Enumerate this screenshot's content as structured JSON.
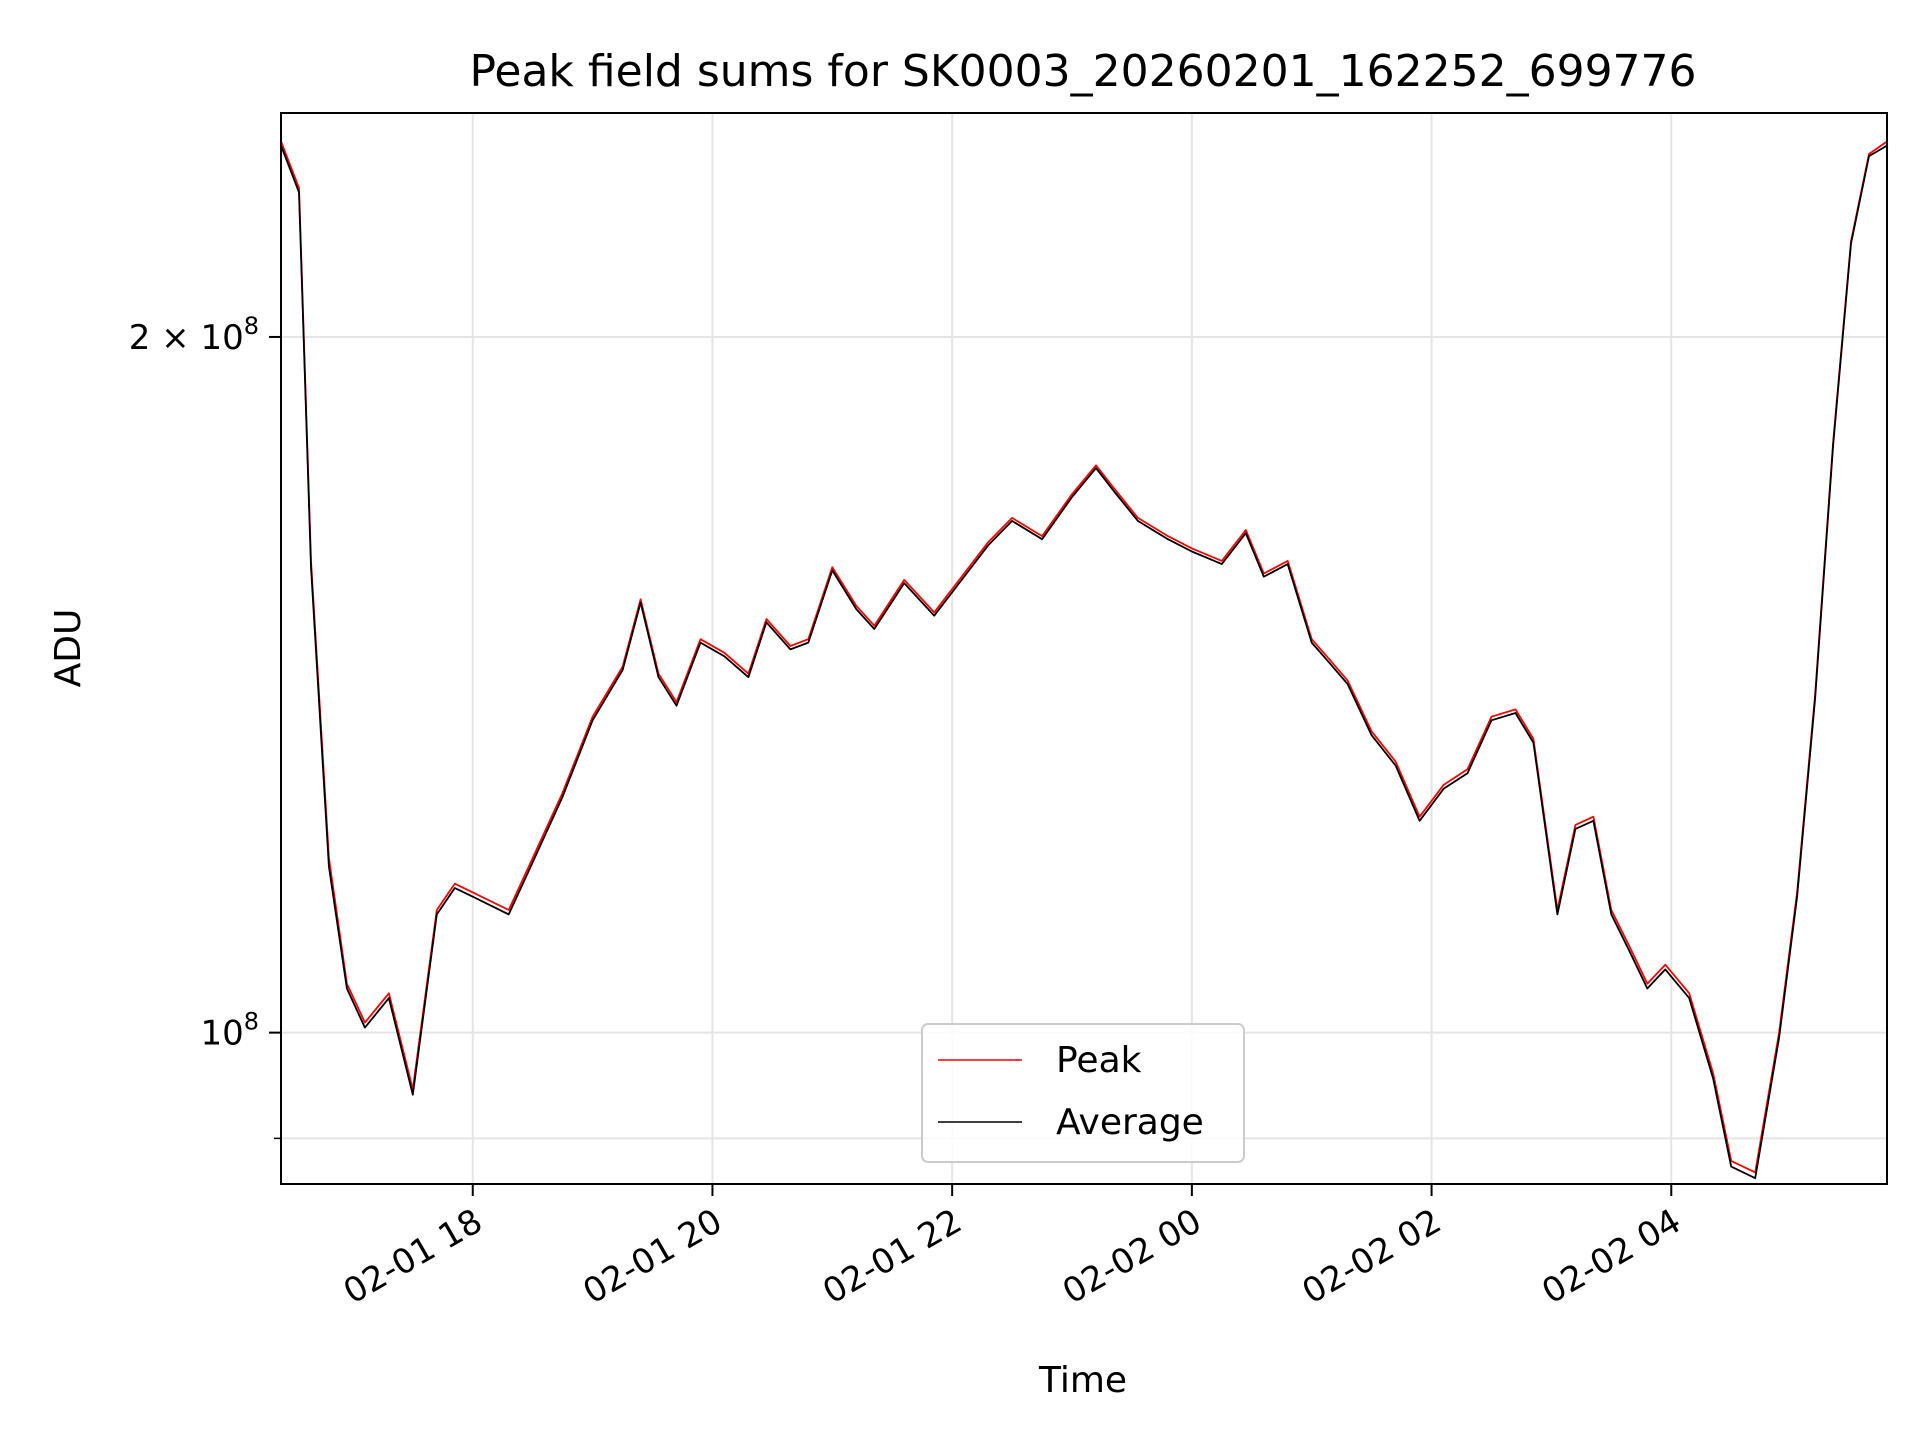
{
  "chart_data": {
    "type": "line",
    "title": "Peak field sums for SK0003_20260201_162252_699776",
    "xlabel": "Time",
    "ylabel": "ADU",
    "yscale": "log",
    "xlim": [
      16.4,
      29.8
    ],
    "ylim": [
      86000000,
      250000000
    ],
    "grid": true,
    "legend_loc": "lower center",
    "x_ticks": [
      {
        "value": 18,
        "label": "02-01 18"
      },
      {
        "value": 20,
        "label": "02-01 20"
      },
      {
        "value": 22,
        "label": "02-01 22"
      },
      {
        "value": 24,
        "label": "02-02 00"
      },
      {
        "value": 26,
        "label": "02-02 02"
      },
      {
        "value": 28,
        "label": "02-02 04"
      }
    ],
    "y_ticks": [
      {
        "value": 200000000,
        "mantissa": "2 × 10",
        "exp": "8"
      },
      {
        "value": 100000000,
        "mantissa": "10",
        "exp": "8"
      }
    ],
    "y_minor_ticks": [
      90000000
    ],
    "series": [
      {
        "name": "Peak",
        "color": "#ff0000",
        "x": [
          16.4,
          16.55,
          16.65,
          16.8,
          16.95,
          17.1,
          17.3,
          17.5,
          17.7,
          17.85,
          18.0,
          18.3,
          18.5,
          18.75,
          19.0,
          19.25,
          19.4,
          19.55,
          19.7,
          19.9,
          20.1,
          20.3,
          20.45,
          20.65,
          20.8,
          21.0,
          21.2,
          21.35,
          21.6,
          21.85,
          22.1,
          22.3,
          22.5,
          22.75,
          23.0,
          23.2,
          23.35,
          23.55,
          23.8,
          24.0,
          24.25,
          24.45,
          24.6,
          24.8,
          25.0,
          25.15,
          25.3,
          25.5,
          25.7,
          25.9,
          26.1,
          26.3,
          26.5,
          26.7,
          26.85,
          27.05,
          27.2,
          27.35,
          27.5,
          27.65,
          27.8,
          27.95,
          28.15,
          28.35,
          28.5,
          28.7,
          28.9,
          29.05,
          29.2,
          29.35,
          29.5,
          29.65,
          29.8
        ],
        "y": [
          243000000,
          232000000,
          160000000,
          119000000,
          105000000,
          101000000,
          104000000,
          94500000,
          113000000,
          116000000,
          115000000,
          113000000,
          119000000,
          127000000,
          137000000,
          144000000,
          154000000,
          143000000,
          139000000,
          148000000,
          146000000,
          143000000,
          151000000,
          147000000,
          148000000,
          159000000,
          153000000,
          150000000,
          157000000,
          152000000,
          158000000,
          163000000,
          167000000,
          164000000,
          171000000,
          176000000,
          172000000,
          167000000,
          164000000,
          162000000,
          160000000,
          165000000,
          158000000,
          160000000,
          148000000,
          145000000,
          142000000,
          135000000,
          131000000,
          124000000,
          128000000,
          130000000,
          137000000,
          138000000,
          134000000,
          113000000,
          123000000,
          124000000,
          113000000,
          109000000,
          105000000,
          107000000,
          104000000,
          96000000,
          88000000,
          87000000,
          100000000,
          115000000,
          140000000,
          180000000,
          220000000,
          240000000,
          243000000
        ]
      },
      {
        "name": "Average",
        "color": "#000000",
        "x": [
          16.4,
          16.55,
          16.65,
          16.8,
          16.95,
          17.1,
          17.3,
          17.5,
          17.7,
          17.85,
          18.0,
          18.3,
          18.5,
          18.75,
          19.0,
          19.25,
          19.4,
          19.55,
          19.7,
          19.9,
          20.1,
          20.3,
          20.45,
          20.65,
          20.8,
          21.0,
          21.2,
          21.35,
          21.6,
          21.85,
          22.1,
          22.3,
          22.5,
          22.75,
          23.0,
          23.2,
          23.35,
          23.55,
          23.8,
          24.0,
          24.25,
          24.45,
          24.6,
          24.8,
          25.0,
          25.15,
          25.3,
          25.5,
          25.7,
          25.9,
          26.1,
          26.3,
          26.5,
          26.7,
          26.85,
          27.05,
          27.2,
          27.35,
          27.5,
          27.65,
          27.8,
          27.95,
          28.15,
          28.35,
          28.5,
          28.7,
          28.9,
          29.05,
          29.2,
          29.35,
          29.5,
          29.65,
          29.8
        ],
        "y": [
          242000000,
          231000000,
          159000000,
          118000000,
          104500000,
          100500000,
          103500000,
          94000000,
          112500000,
          115500000,
          114500000,
          112500000,
          118500000,
          126500000,
          136500000,
          143500000,
          153500000,
          142500000,
          138500000,
          147500000,
          145500000,
          142500000,
          150500000,
          146500000,
          147500000,
          158500000,
          152500000,
          149500000,
          156500000,
          151500000,
          157500000,
          162500000,
          166500000,
          163500000,
          170500000,
          175500000,
          171500000,
          166500000,
          163500000,
          161500000,
          159500000,
          164500000,
          157500000,
          159500000,
          147500000,
          144500000,
          141500000,
          134500000,
          130500000,
          123500000,
          127500000,
          129500000,
          136500000,
          137500000,
          133500000,
          112500000,
          122500000,
          123500000,
          112500000,
          108500000,
          104500000,
          106500000,
          103500000,
          95500000,
          87500000,
          86500000,
          99500000,
          114500000,
          139500000,
          179500000,
          219500000,
          239500000,
          242000000
        ]
      }
    ]
  }
}
